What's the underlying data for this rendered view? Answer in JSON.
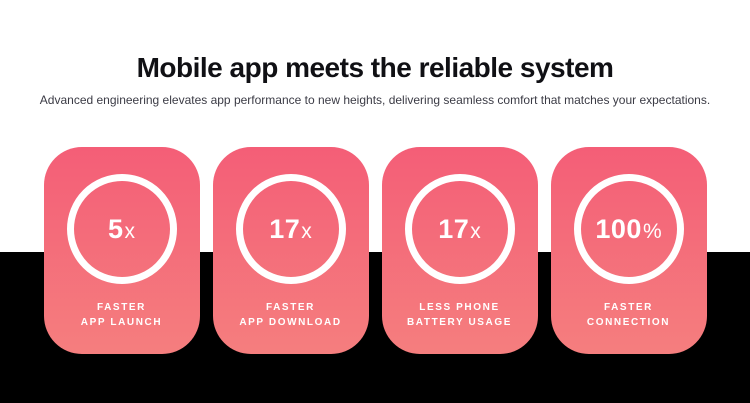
{
  "header": {
    "title": "Mobile app meets the reliable system",
    "subtitle": "Advanced engineering elevates app performance to new heights, delivering seamless comfort that matches your expectations."
  },
  "cards": [
    {
      "stat_value": "5",
      "stat_suffix": "x",
      "label_line1": "FASTER",
      "label_line2": "APP LAUNCH"
    },
    {
      "stat_value": "17",
      "stat_suffix": "x",
      "label_line1": "FASTER",
      "label_line2": "APP DOWNLOAD"
    },
    {
      "stat_value": "17",
      "stat_suffix": "x",
      "label_line1": "LESS PHONE",
      "label_line2": "BATTERY USAGE"
    },
    {
      "stat_value": "100",
      "stat_suffix": "%",
      "label_line1": "FASTER",
      "label_line2": "CONNECTION"
    }
  ],
  "colors": {
    "card_gradient_top": "#f45e77",
    "card_gradient_bottom": "#f57e7e",
    "ring": "#ffffff",
    "background_top": "#ffffff",
    "background_bottom": "#000000",
    "title_text": "#101014",
    "subtitle_text": "#3b3b45",
    "card_text": "#ffffff"
  }
}
